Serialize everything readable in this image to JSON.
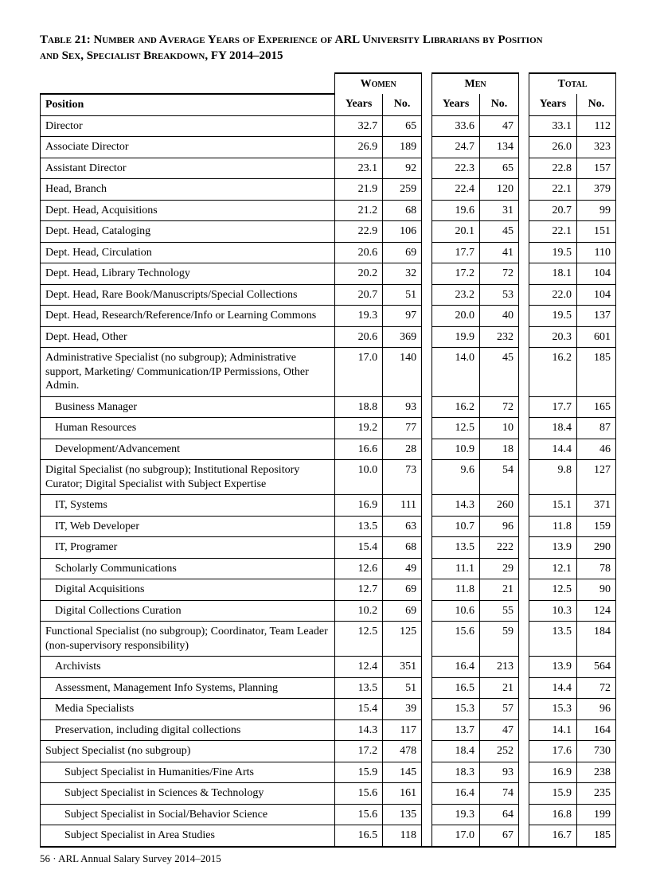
{
  "title_line1": "Table 21: Number and Average Years of Experience of ARL University Librarians by Position",
  "title_line2": "and Sex, Specialist Breakdown, FY 2014–2015",
  "groups": [
    "Women",
    "Men",
    "Total"
  ],
  "col_years": "Years",
  "col_no": "No.",
  "position_header": "Position",
  "rows": [
    {
      "indent": 0,
      "label": "Director",
      "w_y": "32.7",
      "w_n": "65",
      "m_y": "33.6",
      "m_n": "47",
      "t_y": "33.1",
      "t_n": "112"
    },
    {
      "indent": 0,
      "label": "Associate Director",
      "w_y": "26.9",
      "w_n": "189",
      "m_y": "24.7",
      "m_n": "134",
      "t_y": "26.0",
      "t_n": "323"
    },
    {
      "indent": 0,
      "label": "Assistant Director",
      "w_y": "23.1",
      "w_n": "92",
      "m_y": "22.3",
      "m_n": "65",
      "t_y": "22.8",
      "t_n": "157"
    },
    {
      "indent": 0,
      "label": "Head, Branch",
      "w_y": "21.9",
      "w_n": "259",
      "m_y": "22.4",
      "m_n": "120",
      "t_y": "22.1",
      "t_n": "379"
    },
    {
      "indent": 0,
      "label": "Dept. Head, Acquisitions",
      "w_y": "21.2",
      "w_n": "68",
      "m_y": "19.6",
      "m_n": "31",
      "t_y": "20.7",
      "t_n": "99"
    },
    {
      "indent": 0,
      "label": "Dept. Head, Cataloging",
      "w_y": "22.9",
      "w_n": "106",
      "m_y": "20.1",
      "m_n": "45",
      "t_y": "22.1",
      "t_n": "151"
    },
    {
      "indent": 0,
      "label": "Dept. Head, Circulation",
      "w_y": "20.6",
      "w_n": "69",
      "m_y": "17.7",
      "m_n": "41",
      "t_y": "19.5",
      "t_n": "110"
    },
    {
      "indent": 0,
      "label": "Dept. Head, Library Technology",
      "w_y": "20.2",
      "w_n": "32",
      "m_y": "17.2",
      "m_n": "72",
      "t_y": "18.1",
      "t_n": "104"
    },
    {
      "indent": 0,
      "label": "Dept. Head, Rare Book/Manuscripts/Special Collections",
      "w_y": "20.7",
      "w_n": "51",
      "m_y": "23.2",
      "m_n": "53",
      "t_y": "22.0",
      "t_n": "104"
    },
    {
      "indent": 0,
      "label": "Dept. Head, Research/Reference/Info or Learning Commons",
      "w_y": "19.3",
      "w_n": "97",
      "m_y": "20.0",
      "m_n": "40",
      "t_y": "19.5",
      "t_n": "137"
    },
    {
      "indent": 0,
      "label": "Dept. Head, Other",
      "w_y": "20.6",
      "w_n": "369",
      "m_y": "19.9",
      "m_n": "232",
      "t_y": "20.3",
      "t_n": "601"
    },
    {
      "indent": 0,
      "label": "Administrative Specialist (no subgroup); Administrative support, Marketing/ Communication/IP Permissions, Other Admin.",
      "w_y": "17.0",
      "w_n": "140",
      "m_y": "14.0",
      "m_n": "45",
      "t_y": "16.2",
      "t_n": "185"
    },
    {
      "indent": 1,
      "label": "Business Manager",
      "w_y": "18.8",
      "w_n": "93",
      "m_y": "16.2",
      "m_n": "72",
      "t_y": "17.7",
      "t_n": "165"
    },
    {
      "indent": 1,
      "label": "Human Resources",
      "w_y": "19.2",
      "w_n": "77",
      "m_y": "12.5",
      "m_n": "10",
      "t_y": "18.4",
      "t_n": "87"
    },
    {
      "indent": 1,
      "label": "Development/Advancement",
      "w_y": "16.6",
      "w_n": "28",
      "m_y": "10.9",
      "m_n": "18",
      "t_y": "14.4",
      "t_n": "46"
    },
    {
      "indent": 0,
      "label": "Digital Specialist (no subgroup); Institutional Repository Curator; Digital Specialist with Subject Expertise",
      "w_y": "10.0",
      "w_n": "73",
      "m_y": "9.6",
      "m_n": "54",
      "t_y": "9.8",
      "t_n": "127"
    },
    {
      "indent": 1,
      "label": "IT, Systems",
      "w_y": "16.9",
      "w_n": "111",
      "m_y": "14.3",
      "m_n": "260",
      "t_y": "15.1",
      "t_n": "371"
    },
    {
      "indent": 1,
      "label": "IT, Web Developer",
      "w_y": "13.5",
      "w_n": "63",
      "m_y": "10.7",
      "m_n": "96",
      "t_y": "11.8",
      "t_n": "159"
    },
    {
      "indent": 1,
      "label": "IT, Programer",
      "w_y": "15.4",
      "w_n": "68",
      "m_y": "13.5",
      "m_n": "222",
      "t_y": "13.9",
      "t_n": "290"
    },
    {
      "indent": 1,
      "label": "Scholarly Communications",
      "w_y": "12.6",
      "w_n": "49",
      "m_y": "11.1",
      "m_n": "29",
      "t_y": "12.1",
      "t_n": "78"
    },
    {
      "indent": 1,
      "label": "Digital Acquisitions",
      "w_y": "12.7",
      "w_n": "69",
      "m_y": "11.8",
      "m_n": "21",
      "t_y": "12.5",
      "t_n": "90"
    },
    {
      "indent": 1,
      "label": "Digital Collections Curation",
      "w_y": "10.2",
      "w_n": "69",
      "m_y": "10.6",
      "m_n": "55",
      "t_y": "10.3",
      "t_n": "124"
    },
    {
      "indent": 0,
      "label": "Functional Specialist (no subgroup); Coordinator, Team Leader (non-supervisory responsibility)",
      "w_y": "12.5",
      "w_n": "125",
      "m_y": "15.6",
      "m_n": "59",
      "t_y": "13.5",
      "t_n": "184"
    },
    {
      "indent": 1,
      "label": "Archivists",
      "w_y": "12.4",
      "w_n": "351",
      "m_y": "16.4",
      "m_n": "213",
      "t_y": "13.9",
      "t_n": "564"
    },
    {
      "indent": 1,
      "label": "Assessment, Management Info Systems, Planning",
      "w_y": "13.5",
      "w_n": "51",
      "m_y": "16.5",
      "m_n": "21",
      "t_y": "14.4",
      "t_n": "72"
    },
    {
      "indent": 1,
      "label": "Media Specialists",
      "w_y": "15.4",
      "w_n": "39",
      "m_y": "15.3",
      "m_n": "57",
      "t_y": "15.3",
      "t_n": "96"
    },
    {
      "indent": 1,
      "label": "Preservation, including digital collections",
      "w_y": "14.3",
      "w_n": "117",
      "m_y": "13.7",
      "m_n": "47",
      "t_y": "14.1",
      "t_n": "164"
    },
    {
      "indent": 0,
      "label": "Subject Specialist (no subgroup)",
      "w_y": "17.2",
      "w_n": "478",
      "m_y": "18.4",
      "m_n": "252",
      "t_y": "17.6",
      "t_n": "730"
    },
    {
      "indent": 2,
      "label": "Subject Specialist in Humanities/Fine Arts",
      "w_y": "15.9",
      "w_n": "145",
      "m_y": "18.3",
      "m_n": "93",
      "t_y": "16.9",
      "t_n": "238"
    },
    {
      "indent": 2,
      "label": "Subject Specialist in Sciences & Technology",
      "w_y": "15.6",
      "w_n": "161",
      "m_y": "16.4",
      "m_n": "74",
      "t_y": "15.9",
      "t_n": "235"
    },
    {
      "indent": 2,
      "label": "Subject Specialist in Social/Behavior Science",
      "w_y": "15.6",
      "w_n": "135",
      "m_y": "19.3",
      "m_n": "64",
      "t_y": "16.8",
      "t_n": "199"
    },
    {
      "indent": 2,
      "label": "Subject Specialist in Area Studies",
      "w_y": "16.5",
      "w_n": "118",
      "m_y": "17.0",
      "m_n": "67",
      "t_y": "16.7",
      "t_n": "185"
    }
  ],
  "footer": "56 · ARL Annual Salary Survey 2014–2015"
}
